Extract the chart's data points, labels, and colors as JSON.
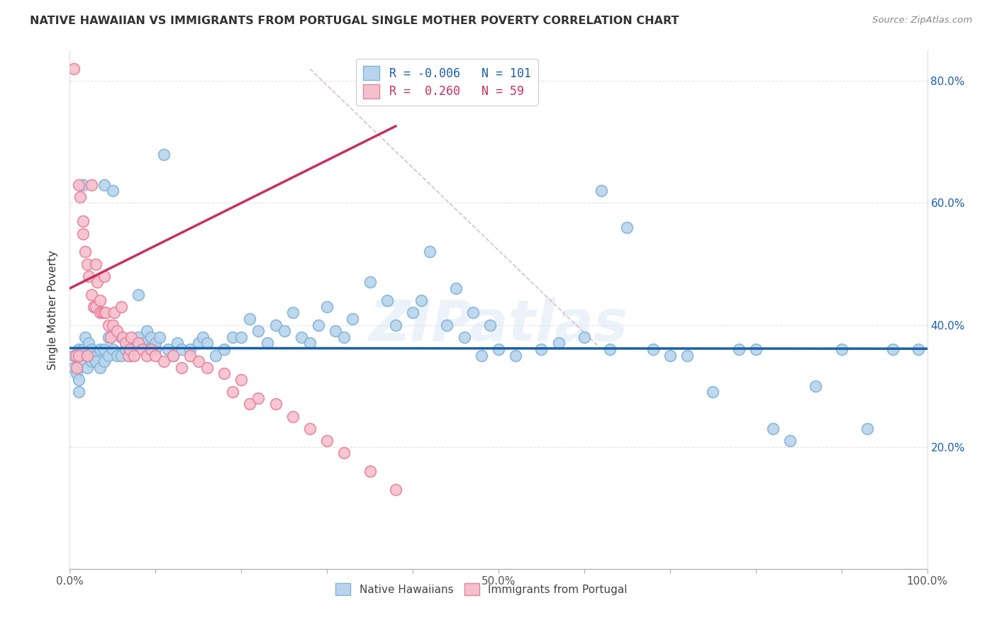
{
  "title": "NATIVE HAWAIIAN VS IMMIGRANTS FROM PORTUGAL SINGLE MOTHER POVERTY CORRELATION CHART",
  "source": "Source: ZipAtlas.com",
  "ylabel": "Single Mother Poverty",
  "x_min": 0.0,
  "x_max": 1.0,
  "y_min": 0.0,
  "y_max": 0.85,
  "x_tick_positions": [
    0.0,
    0.1,
    0.2,
    0.3,
    0.4,
    0.5,
    0.6,
    0.7,
    0.8,
    0.9,
    1.0
  ],
  "x_tick_labels": [
    "0.0%",
    "",
    "",
    "",
    "",
    "50.0%",
    "",
    "",
    "",
    "",
    "100.0%"
  ],
  "y_tick_positions": [
    0.0,
    0.2,
    0.4,
    0.6,
    0.8
  ],
  "y_tick_labels_right": [
    "",
    "20.0%",
    "40.0%",
    "60.0%",
    "80.0%"
  ],
  "blue_color": "#b8d4ec",
  "blue_edge_color": "#7fb3d9",
  "pink_color": "#f5c0ce",
  "pink_edge_color": "#e8809a",
  "blue_line_color": "#1a5fa8",
  "pink_line_color": "#c83060",
  "diag_line_color": "#d8b8c0",
  "watermark": "ZIPatlas",
  "legend_r_blue": "-0.006",
  "legend_n_blue": "101",
  "legend_r_pink": "0.260",
  "legend_n_pink": "59",
  "blue_points_x": [
    0.005,
    0.005,
    0.008,
    0.01,
    0.01,
    0.01,
    0.012,
    0.015,
    0.015,
    0.018,
    0.02,
    0.02,
    0.022,
    0.025,
    0.025,
    0.025,
    0.03,
    0.03,
    0.035,
    0.035,
    0.04,
    0.04,
    0.04,
    0.045,
    0.045,
    0.05,
    0.05,
    0.055,
    0.06,
    0.06,
    0.065,
    0.07,
    0.075,
    0.08,
    0.08,
    0.085,
    0.09,
    0.09,
    0.095,
    0.1,
    0.1,
    0.105,
    0.11,
    0.115,
    0.12,
    0.125,
    0.13,
    0.14,
    0.15,
    0.155,
    0.16,
    0.17,
    0.18,
    0.19,
    0.2,
    0.21,
    0.22,
    0.23,
    0.24,
    0.25,
    0.26,
    0.27,
    0.28,
    0.29,
    0.3,
    0.31,
    0.32,
    0.33,
    0.35,
    0.37,
    0.38,
    0.4,
    0.41,
    0.42,
    0.44,
    0.45,
    0.46,
    0.47,
    0.48,
    0.49,
    0.5,
    0.52,
    0.55,
    0.57,
    0.6,
    0.62,
    0.63,
    0.65,
    0.68,
    0.7,
    0.72,
    0.75,
    0.78,
    0.8,
    0.82,
    0.84,
    0.87,
    0.9,
    0.93,
    0.96,
    0.99
  ],
  "blue_points_y": [
    0.35,
    0.33,
    0.32,
    0.36,
    0.31,
    0.29,
    0.34,
    0.63,
    0.36,
    0.38,
    0.35,
    0.33,
    0.37,
    0.35,
    0.36,
    0.34,
    0.35,
    0.34,
    0.36,
    0.33,
    0.63,
    0.36,
    0.34,
    0.38,
    0.35,
    0.62,
    0.36,
    0.35,
    0.35,
    0.38,
    0.36,
    0.35,
    0.37,
    0.45,
    0.38,
    0.37,
    0.36,
    0.39,
    0.38,
    0.36,
    0.37,
    0.38,
    0.68,
    0.36,
    0.35,
    0.37,
    0.36,
    0.36,
    0.37,
    0.38,
    0.37,
    0.35,
    0.36,
    0.38,
    0.38,
    0.41,
    0.39,
    0.37,
    0.4,
    0.39,
    0.42,
    0.38,
    0.37,
    0.4,
    0.43,
    0.39,
    0.38,
    0.41,
    0.47,
    0.44,
    0.4,
    0.42,
    0.44,
    0.52,
    0.4,
    0.46,
    0.38,
    0.42,
    0.35,
    0.4,
    0.36,
    0.35,
    0.36,
    0.37,
    0.38,
    0.62,
    0.36,
    0.56,
    0.36,
    0.35,
    0.35,
    0.29,
    0.36,
    0.36,
    0.23,
    0.21,
    0.3,
    0.36,
    0.23,
    0.36,
    0.36
  ],
  "pink_points_x": [
    0.005,
    0.007,
    0.008,
    0.01,
    0.01,
    0.012,
    0.015,
    0.015,
    0.018,
    0.02,
    0.02,
    0.022,
    0.025,
    0.025,
    0.028,
    0.03,
    0.03,
    0.032,
    0.035,
    0.035,
    0.038,
    0.04,
    0.04,
    0.042,
    0.045,
    0.048,
    0.05,
    0.052,
    0.055,
    0.06,
    0.062,
    0.065,
    0.068,
    0.07,
    0.072,
    0.075,
    0.08,
    0.085,
    0.09,
    0.095,
    0.1,
    0.11,
    0.12,
    0.13,
    0.14,
    0.15,
    0.16,
    0.18,
    0.19,
    0.2,
    0.21,
    0.22,
    0.24,
    0.26,
    0.28,
    0.3,
    0.32,
    0.35,
    0.38
  ],
  "pink_points_y": [
    0.82,
    0.35,
    0.33,
    0.63,
    0.35,
    0.61,
    0.57,
    0.55,
    0.52,
    0.5,
    0.35,
    0.48,
    0.63,
    0.45,
    0.43,
    0.5,
    0.43,
    0.47,
    0.44,
    0.42,
    0.42,
    0.48,
    0.42,
    0.42,
    0.4,
    0.38,
    0.4,
    0.42,
    0.39,
    0.43,
    0.38,
    0.37,
    0.35,
    0.36,
    0.38,
    0.35,
    0.37,
    0.36,
    0.35,
    0.36,
    0.35,
    0.34,
    0.35,
    0.33,
    0.35,
    0.34,
    0.33,
    0.32,
    0.29,
    0.31,
    0.27,
    0.28,
    0.27,
    0.25,
    0.23,
    0.21,
    0.19,
    0.16,
    0.13
  ],
  "blue_trendline_y_intercept": 0.362,
  "blue_trendline_slope": -0.001,
  "pink_trendline_y_intercept": 0.46,
  "pink_trendline_slope": 0.7,
  "diag_line_x0": 0.28,
  "diag_line_y0": 0.82,
  "diag_line_x1": 0.62,
  "diag_line_y1": 0.36
}
